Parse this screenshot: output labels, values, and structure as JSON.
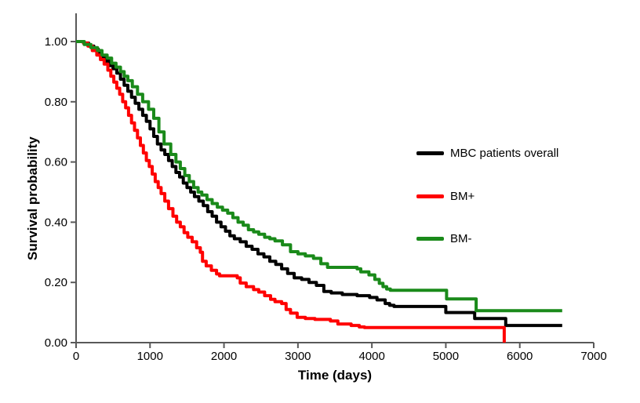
{
  "figure": {
    "background": "#ffffff"
  },
  "axes": {
    "x_title": "Time (days)",
    "y_title": "Survival probability"
  },
  "legend": {
    "items": [
      {
        "label": "MBC patients overall",
        "color": "#000000"
      },
      {
        "label": "BM+",
        "color": "#ff0000"
      },
      {
        "label": "BM-",
        "color": "#1a8a1a"
      }
    ]
  },
  "colors": {
    "axis": "#595959",
    "tick_text": "#000000",
    "black_series": "#000000",
    "red_series": "#ff0000",
    "green_series": "#1a8a1a"
  },
  "chart_data": {
    "type": "line",
    "subtype": "kaplan_meier_step",
    "title": "",
    "xlabel": "Time (days)",
    "ylabel": "Survival probability",
    "xlim": [
      0,
      7000
    ],
    "ylim": [
      0,
      1
    ],
    "x_ticks": [
      0,
      1000,
      2000,
      3000,
      4000,
      5000,
      6000,
      7000
    ],
    "y_ticks": [
      1.0,
      0.8,
      0.6,
      0.4,
      0.2,
      0.0
    ],
    "y_tick_decimals": 2,
    "grid": false,
    "legend_position": "center-right",
    "axis_color": "#595959",
    "series": [
      {
        "name": "MBC patients overall",
        "color": "#000000",
        "points": [
          [
            0,
            1.0
          ],
          [
            100,
            0.995
          ],
          [
            170,
            0.985
          ],
          [
            240,
            0.975
          ],
          [
            300,
            0.96
          ],
          [
            350,
            0.945
          ],
          [
            400,
            0.935
          ],
          [
            450,
            0.92
          ],
          [
            500,
            0.91
          ],
          [
            550,
            0.895
          ],
          [
            600,
            0.875
          ],
          [
            650,
            0.855
          ],
          [
            700,
            0.835
          ],
          [
            750,
            0.815
          ],
          [
            800,
            0.795
          ],
          [
            850,
            0.775
          ],
          [
            900,
            0.755
          ],
          [
            950,
            0.735
          ],
          [
            1000,
            0.71
          ],
          [
            1050,
            0.685
          ],
          [
            1100,
            0.66
          ],
          [
            1150,
            0.64
          ],
          [
            1200,
            0.625
          ],
          [
            1250,
            0.605
          ],
          [
            1300,
            0.585
          ],
          [
            1350,
            0.565
          ],
          [
            1400,
            0.55
          ],
          [
            1450,
            0.53
          ],
          [
            1500,
            0.515
          ],
          [
            1550,
            0.5
          ],
          [
            1600,
            0.485
          ],
          [
            1660,
            0.47
          ],
          [
            1720,
            0.455
          ],
          [
            1780,
            0.435
          ],
          [
            1840,
            0.42
          ],
          [
            1900,
            0.4
          ],
          [
            1960,
            0.385
          ],
          [
            2020,
            0.37
          ],
          [
            2080,
            0.355
          ],
          [
            2140,
            0.345
          ],
          [
            2220,
            0.335
          ],
          [
            2300,
            0.32
          ],
          [
            2380,
            0.31
          ],
          [
            2460,
            0.295
          ],
          [
            2540,
            0.285
          ],
          [
            2620,
            0.27
          ],
          [
            2700,
            0.26
          ],
          [
            2780,
            0.245
          ],
          [
            2860,
            0.23
          ],
          [
            2950,
            0.215
          ],
          [
            3050,
            0.21
          ],
          [
            3150,
            0.2
          ],
          [
            3250,
            0.19
          ],
          [
            3350,
            0.17
          ],
          [
            3450,
            0.165
          ],
          [
            3600,
            0.16
          ],
          [
            3800,
            0.156
          ],
          [
            3970,
            0.15
          ],
          [
            4070,
            0.142
          ],
          [
            4180,
            0.13
          ],
          [
            4240,
            0.124
          ],
          [
            4300,
            0.12
          ],
          [
            5000,
            0.1
          ],
          [
            5390,
            0.08
          ],
          [
            5810,
            0.057
          ],
          [
            6574,
            0.057
          ]
        ]
      },
      {
        "name": "BM+",
        "color": "#ff0000",
        "points": [
          [
            0,
            1.0
          ],
          [
            100,
            0.995
          ],
          [
            160,
            0.985
          ],
          [
            220,
            0.97
          ],
          [
            280,
            0.955
          ],
          [
            330,
            0.94
          ],
          [
            380,
            0.925
          ],
          [
            430,
            0.905
          ],
          [
            470,
            0.885
          ],
          [
            510,
            0.865
          ],
          [
            550,
            0.845
          ],
          [
            590,
            0.825
          ],
          [
            630,
            0.8
          ],
          [
            670,
            0.78
          ],
          [
            710,
            0.755
          ],
          [
            750,
            0.73
          ],
          [
            790,
            0.705
          ],
          [
            830,
            0.68
          ],
          [
            870,
            0.655
          ],
          [
            910,
            0.63
          ],
          [
            950,
            0.605
          ],
          [
            990,
            0.585
          ],
          [
            1030,
            0.56
          ],
          [
            1070,
            0.535
          ],
          [
            1110,
            0.515
          ],
          [
            1150,
            0.495
          ],
          [
            1200,
            0.47
          ],
          [
            1250,
            0.445
          ],
          [
            1310,
            0.42
          ],
          [
            1360,
            0.4
          ],
          [
            1410,
            0.385
          ],
          [
            1460,
            0.365
          ],
          [
            1510,
            0.35
          ],
          [
            1570,
            0.335
          ],
          [
            1630,
            0.315
          ],
          [
            1680,
            0.3
          ],
          [
            1710,
            0.27
          ],
          [
            1760,
            0.255
          ],
          [
            1830,
            0.24
          ],
          [
            1900,
            0.228
          ],
          [
            1940,
            0.222
          ],
          [
            2180,
            0.215
          ],
          [
            2220,
            0.198
          ],
          [
            2300,
            0.186
          ],
          [
            2400,
            0.176
          ],
          [
            2470,
            0.168
          ],
          [
            2550,
            0.156
          ],
          [
            2630,
            0.144
          ],
          [
            2690,
            0.136
          ],
          [
            2780,
            0.13
          ],
          [
            2840,
            0.11
          ],
          [
            2900,
            0.098
          ],
          [
            2990,
            0.084
          ],
          [
            3100,
            0.08
          ],
          [
            3230,
            0.077
          ],
          [
            3440,
            0.072
          ],
          [
            3540,
            0.062
          ],
          [
            3720,
            0.057
          ],
          [
            3830,
            0.052
          ],
          [
            3900,
            0.05
          ],
          [
            5790,
            0.0
          ]
        ]
      },
      {
        "name": "BM-",
        "color": "#1a8a1a",
        "points": [
          [
            0,
            1.0
          ],
          [
            110,
            0.99
          ],
          [
            200,
            0.98
          ],
          [
            290,
            0.97
          ],
          [
            350,
            0.955
          ],
          [
            420,
            0.945
          ],
          [
            480,
            0.928
          ],
          [
            540,
            0.915
          ],
          [
            600,
            0.9
          ],
          [
            650,
            0.885
          ],
          [
            700,
            0.87
          ],
          [
            760,
            0.85
          ],
          [
            830,
            0.825
          ],
          [
            900,
            0.8
          ],
          [
            980,
            0.775
          ],
          [
            1050,
            0.745
          ],
          [
            1120,
            0.7
          ],
          [
            1190,
            0.66
          ],
          [
            1280,
            0.625
          ],
          [
            1350,
            0.6
          ],
          [
            1410,
            0.578
          ],
          [
            1470,
            0.555
          ],
          [
            1530,
            0.535
          ],
          [
            1590,
            0.515
          ],
          [
            1650,
            0.5
          ],
          [
            1700,
            0.49
          ],
          [
            1770,
            0.475
          ],
          [
            1840,
            0.462
          ],
          [
            1910,
            0.45
          ],
          [
            1980,
            0.44
          ],
          [
            2050,
            0.43
          ],
          [
            2120,
            0.415
          ],
          [
            2190,
            0.4
          ],
          [
            2260,
            0.39
          ],
          [
            2330,
            0.375
          ],
          [
            2400,
            0.368
          ],
          [
            2470,
            0.36
          ],
          [
            2550,
            0.35
          ],
          [
            2620,
            0.345
          ],
          [
            2690,
            0.338
          ],
          [
            2790,
            0.325
          ],
          [
            2900,
            0.302
          ],
          [
            3000,
            0.295
          ],
          [
            3100,
            0.288
          ],
          [
            3210,
            0.28
          ],
          [
            3310,
            0.262
          ],
          [
            3400,
            0.25
          ],
          [
            3800,
            0.245
          ],
          [
            3850,
            0.235
          ],
          [
            3960,
            0.225
          ],
          [
            4040,
            0.21
          ],
          [
            4100,
            0.197
          ],
          [
            4150,
            0.186
          ],
          [
            4200,
            0.178
          ],
          [
            4250,
            0.174
          ],
          [
            5010,
            0.145
          ],
          [
            5410,
            0.106
          ],
          [
            6574,
            0.106
          ]
        ]
      }
    ]
  }
}
